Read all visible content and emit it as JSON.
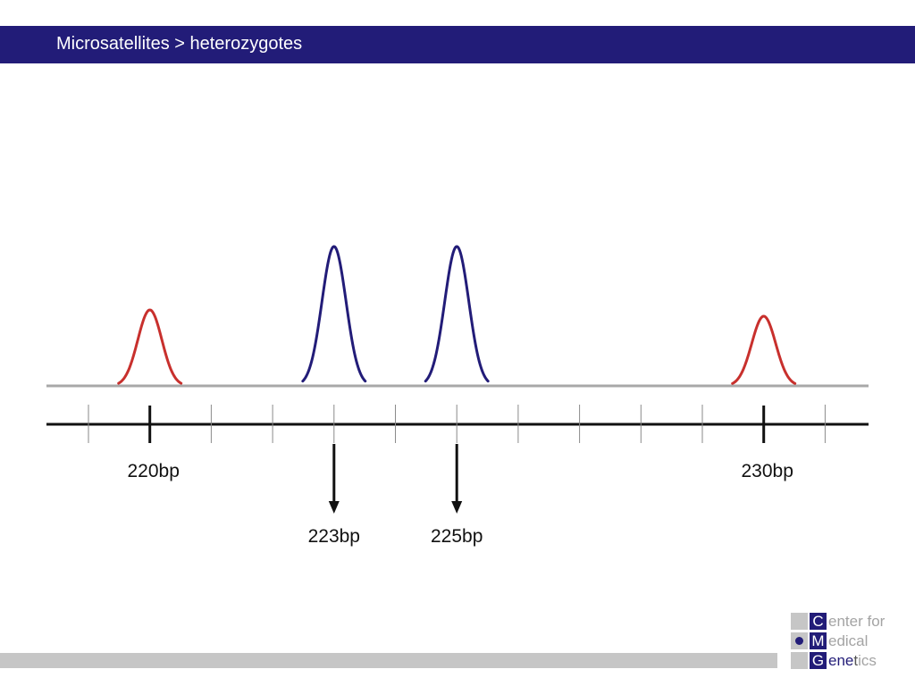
{
  "header": {
    "title": "Microsatellites > heterozygotes"
  },
  "colors": {
    "title_bar": "#221c78",
    "marker_peak": "#c8302d",
    "allele_peak": "#221c78",
    "baseline": "#a8a8a8",
    "axis": "#111111"
  },
  "diagram": {
    "markers": [
      {
        "label": "220bp",
        "bp": 220
      },
      {
        "label": "230bp",
        "bp": 230
      }
    ],
    "alleles": [
      {
        "label": "223bp",
        "bp": 223
      },
      {
        "label": "225bp",
        "bp": 225
      }
    ]
  },
  "logo": {
    "row1": {
      "letter": "C",
      "rest": "enter for"
    },
    "row2": {
      "letter": "M",
      "rest": "edical"
    },
    "row3": {
      "letter": "G",
      "dark": "ene",
      "mid": "t",
      "tail": "ics"
    }
  }
}
